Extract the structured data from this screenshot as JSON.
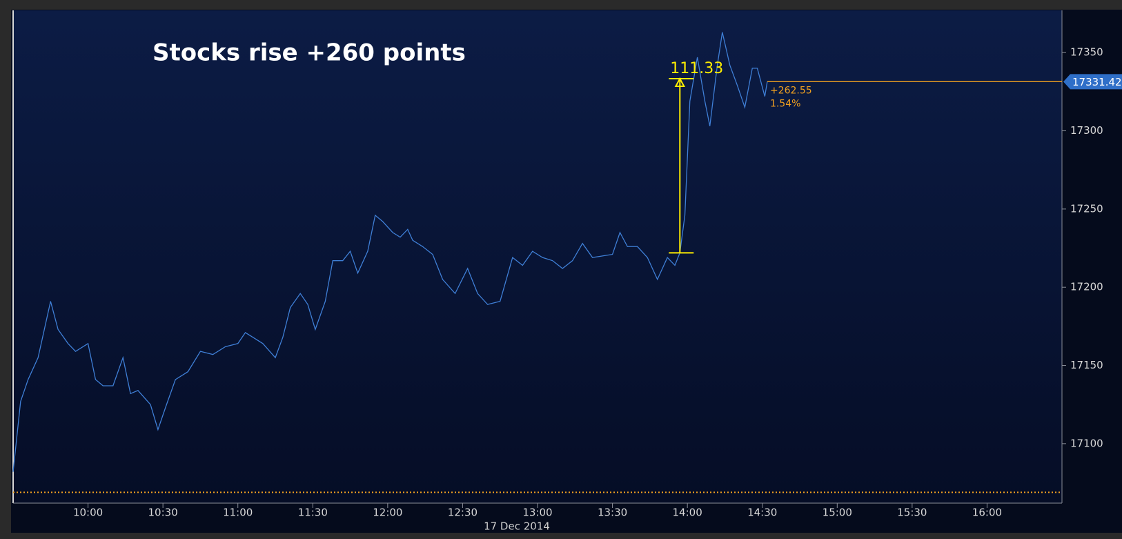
{
  "chart_data": {
    "type": "line",
    "title": "Stocks rise +260 points",
    "xlabel": "17 Dec 2014",
    "color": "#3f7fd6",
    "x": [
      "09:30",
      "09:33",
      "09:36",
      "09:40",
      "09:45",
      "09:48",
      "09:52",
      "09:55",
      "10:00",
      "10:03",
      "10:06",
      "10:10",
      "10:14",
      "10:17",
      "10:20",
      "10:25",
      "10:28",
      "10:31",
      "10:35",
      "10:40",
      "10:45",
      "10:50",
      "10:55",
      "11:00",
      "11:03",
      "11:06",
      "11:10",
      "11:15",
      "11:18",
      "11:21",
      "11:25",
      "11:28",
      "11:31",
      "11:35",
      "11:38",
      "11:42",
      "11:45",
      "11:48",
      "11:52",
      "11:55",
      "11:58",
      "12:02",
      "12:05",
      "12:08",
      "12:10",
      "12:14",
      "12:18",
      "12:22",
      "12:27",
      "12:32",
      "12:36",
      "12:40",
      "12:45",
      "12:50",
      "12:54",
      "12:58",
      "13:02",
      "13:06",
      "13:10",
      "13:14",
      "13:18",
      "13:22",
      "13:26",
      "13:30",
      "13:33",
      "13:36",
      "13:40",
      "13:44",
      "13:48",
      "13:52",
      "13:55",
      "13:57",
      "13:59",
      "14:01",
      "14:04",
      "14:07",
      "14:09",
      "14:12",
      "14:14",
      "14:17",
      "14:20",
      "14:23",
      "14:26",
      "14:28",
      "14:31",
      "14:32"
    ],
    "values": [
      17082,
      17127,
      17141,
      17155,
      17191,
      17173,
      17164,
      17159,
      17164,
      17141,
      17137,
      17137,
      17155,
      17132,
      17134,
      17125,
      17109,
      17123,
      17141,
      17146,
      17159,
      17157,
      17162,
      17164,
      17171,
      17168,
      17164,
      17155,
      17168,
      17187,
      17196,
      17189,
      17173,
      17191,
      17217,
      17217,
      17223,
      17209,
      17223,
      17246,
      17242,
      17235,
      17232,
      17237,
      17230,
      17226,
      17221,
      17205,
      17196,
      17212,
      17196,
      17189,
      17191,
      17219,
      17214,
      17223,
      17219,
      17217,
      17212,
      17217,
      17228,
      17219,
      17220,
      17221,
      17235,
      17226,
      17226,
      17219,
      17205,
      17219,
      17214,
      17222,
      17246,
      17319,
      17347,
      17319,
      17303,
      17342,
      17363,
      17342,
      17329,
      17315,
      17340,
      17340,
      17322,
      17331.42
    ],
    "xlim": [
      "09:30",
      "16:30"
    ],
    "xticks": [
      "10:00",
      "10:30",
      "11:00",
      "11:30",
      "12:00",
      "12:30",
      "13:00",
      "13:30",
      "14:00",
      "14:30",
      "15:00",
      "15:30",
      "16:00"
    ],
    "ylim": [
      17062,
      17377
    ],
    "yticks": [
      17100,
      17150,
      17200,
      17250,
      17300,
      17350
    ],
    "last_price": 17331.42,
    "change_label": "+262.55",
    "change_pct_label": "1.54%",
    "previous_close": 17068.87,
    "measure": {
      "label": "111.33",
      "x": "13:57",
      "from": 17222,
      "to": 17333.33
    }
  }
}
